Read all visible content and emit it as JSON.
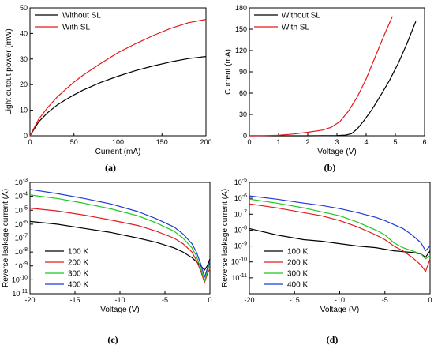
{
  "chart_data": [
    {
      "panel_label": "(a)",
      "type": "line",
      "xlabel": "Current (mA)",
      "ylabel": "Light output power (mW)",
      "xlim": [
        0,
        200
      ],
      "ylim": [
        0,
        50
      ],
      "xticks": [
        0,
        50,
        100,
        150,
        200
      ],
      "yticks": [
        0,
        10,
        20,
        30,
        40,
        50
      ],
      "yscale": "linear",
      "legend_position": "top-left",
      "series": [
        {
          "name": "Without SL",
          "color": "#000000",
          "x": [
            0,
            10,
            20,
            30,
            40,
            50,
            60,
            80,
            100,
            120,
            140,
            160,
            180,
            200
          ],
          "y": [
            0,
            5.5,
            9,
            11.8,
            14,
            16,
            17.8,
            20.8,
            23.3,
            25.5,
            27.3,
            28.9,
            30.2,
            31
          ]
        },
        {
          "name": "With SL",
          "color": "#e31a1c",
          "x": [
            0,
            10,
            20,
            30,
            40,
            50,
            60,
            80,
            100,
            120,
            140,
            160,
            180,
            200
          ],
          "y": [
            0,
            6.5,
            11,
            14.8,
            18,
            21,
            23.6,
            28.2,
            32.5,
            36,
            39.2,
            42,
            44.2,
            45.5
          ]
        }
      ]
    },
    {
      "panel_label": "(b)",
      "type": "line",
      "xlabel": "Voltage (V)",
      "ylabel": "Current (mA)",
      "xlim": [
        0,
        6
      ],
      "ylim": [
        0,
        180
      ],
      "xticks": [
        0,
        1,
        2,
        3,
        4,
        5,
        6
      ],
      "yticks": [
        0,
        30,
        60,
        90,
        120,
        150,
        180
      ],
      "yscale": "linear",
      "legend_position": "top-left",
      "series": [
        {
          "name": "Without SL",
          "color": "#000000",
          "x": [
            0,
            1,
            2,
            3,
            3.3,
            3.5,
            3.7,
            3.9,
            4.2,
            4.5,
            4.8,
            5.1,
            5.4,
            5.7
          ],
          "y": [
            0,
            0,
            0,
            0.3,
            1,
            3,
            10,
            20,
            37,
            57,
            78,
            102,
            130,
            161
          ]
        },
        {
          "name": "With SL",
          "color": "#e31a1c",
          "x": [
            0,
            0.5,
            1,
            1.5,
            2,
            2.5,
            2.8,
            3.1,
            3.4,
            3.7,
            4,
            4.3,
            4.6,
            4.9
          ],
          "y": [
            0,
            0.2,
            0.8,
            2.5,
            5,
            8,
            12,
            20,
            35,
            55,
            80,
            110,
            140,
            168
          ]
        }
      ]
    },
    {
      "panel_label": "(c)",
      "type": "line",
      "xlabel": "Voltage (V)",
      "ylabel": "Reverse leakage current (A)",
      "xlim": [
        -20,
        0
      ],
      "ylim": [
        1e-11,
        0.001
      ],
      "xticks": [
        -20,
        -15,
        -10,
        -5,
        0
      ],
      "yticks": [
        -11,
        -10,
        -9,
        -8,
        -7,
        -6,
        -5,
        -4,
        -3
      ],
      "yscale": "log",
      "legend_position": "lower-left",
      "series": [
        {
          "name": "100 K",
          "color": "#000000",
          "x": [
            -20,
            -17,
            -14,
            -11,
            -8,
            -6,
            -4,
            -3,
            -2,
            -1.5,
            -1,
            -0.6,
            -0.3,
            0
          ],
          "log10_y": [
            -5.8,
            -6.0,
            -6.3,
            -6.6,
            -7.0,
            -7.3,
            -7.7,
            -8.0,
            -8.4,
            -8.7,
            -9.0,
            -9.3,
            -9.0,
            -8.5
          ]
        },
        {
          "name": "200 K",
          "color": "#e31a1c",
          "x": [
            -20,
            -17,
            -14,
            -11,
            -8,
            -6,
            -4,
            -3,
            -2,
            -1.5,
            -1,
            -0.6,
            -0.3,
            0
          ],
          "log10_y": [
            -4.85,
            -5.05,
            -5.35,
            -5.7,
            -6.1,
            -6.5,
            -7.0,
            -7.4,
            -8.0,
            -8.6,
            -9.4,
            -10.2,
            -9.6,
            -9.2
          ]
        },
        {
          "name": "300 K",
          "color": "#1ec81e",
          "x": [
            -20,
            -17,
            -14,
            -11,
            -8,
            -6,
            -4,
            -3,
            -2,
            -1.5,
            -1,
            -0.6,
            -0.3,
            0
          ],
          "log10_y": [
            -3.9,
            -4.15,
            -4.5,
            -4.9,
            -5.4,
            -5.9,
            -6.5,
            -7.0,
            -7.7,
            -8.3,
            -9.2,
            -10.1,
            -9.4,
            -8.9
          ]
        },
        {
          "name": "400 K",
          "color": "#1f3bd6",
          "x": [
            -20,
            -17,
            -14,
            -11,
            -8,
            -6,
            -4,
            -3,
            -2,
            -1.5,
            -1,
            -0.6,
            -0.3,
            0
          ],
          "log10_y": [
            -3.5,
            -3.8,
            -4.15,
            -4.55,
            -5.1,
            -5.6,
            -6.2,
            -6.7,
            -7.4,
            -8.0,
            -8.9,
            -9.8,
            -9.2,
            -8.7
          ]
        }
      ]
    },
    {
      "panel_label": "(d)",
      "type": "line",
      "xlabel": "Voltage (V)",
      "ylabel": "Reverse leakage current (A)",
      "xlim": [
        -20,
        0
      ],
      "ylim": [
        1e-12,
        1e-05
      ],
      "xticks": [
        -20,
        -15,
        -10,
        -5,
        0
      ],
      "yticks": [
        -11,
        -10,
        -9,
        -8,
        -7,
        -6,
        -5
      ],
      "yscale": "log",
      "legend_position": "lower-left",
      "series": [
        {
          "name": "100 K",
          "color": "#000000",
          "x": [
            -20,
            -17,
            -14,
            -12,
            -10,
            -8,
            -6,
            -5,
            -4,
            -3,
            -2,
            -1,
            -0.5,
            0
          ],
          "log10_y": [
            -7.9,
            -8.3,
            -8.6,
            -8.7,
            -8.85,
            -9.0,
            -9.1,
            -9.2,
            -9.3,
            -9.35,
            -9.4,
            -9.5,
            -9.7,
            -9.3
          ]
        },
        {
          "name": "200 K",
          "color": "#e31a1c",
          "x": [
            -20,
            -17,
            -14,
            -12,
            -10,
            -8,
            -6,
            -5,
            -4,
            -3,
            -2,
            -1,
            -0.5,
            0
          ],
          "log10_y": [
            -6.35,
            -6.6,
            -6.9,
            -7.1,
            -7.4,
            -7.8,
            -8.3,
            -8.6,
            -9.0,
            -9.3,
            -9.7,
            -10.2,
            -10.6,
            -9.8
          ]
        },
        {
          "name": "300 K",
          "color": "#1ec81e",
          "x": [
            -20,
            -17,
            -14,
            -12,
            -10,
            -8,
            -6,
            -5,
            -4,
            -3,
            -2,
            -1,
            -0.5,
            0
          ],
          "log10_y": [
            -6.05,
            -6.3,
            -6.6,
            -6.85,
            -7.1,
            -7.5,
            -8.0,
            -8.3,
            -8.8,
            -9.1,
            -9.3,
            -9.5,
            -9.8,
            -9.6
          ]
        },
        {
          "name": "400 K",
          "color": "#1f3bd6",
          "x": [
            -20,
            -17,
            -14,
            -12,
            -10,
            -8,
            -6,
            -5,
            -4,
            -3,
            -2,
            -1,
            -0.5,
            0
          ],
          "log10_y": [
            -5.85,
            -6.05,
            -6.3,
            -6.45,
            -6.65,
            -6.9,
            -7.2,
            -7.4,
            -7.65,
            -7.9,
            -8.3,
            -8.8,
            -9.3,
            -9.0
          ]
        }
      ]
    }
  ]
}
